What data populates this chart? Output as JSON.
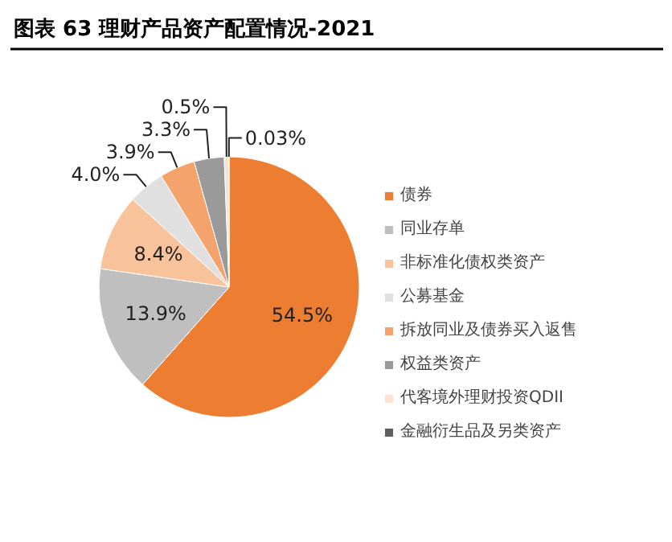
{
  "chart_data": {
    "type": "pie",
    "title": "图表 63 理财产品资产配置情况-2021",
    "categories": [
      "债券",
      "同业存单",
      "非标准化债权类资产",
      "公募基金",
      "拆放同业及债券买入返售",
      "权益类资产",
      "代客境外理财投资QDII",
      "金融衍生品及另类资产"
    ],
    "values": [
      54.5,
      13.9,
      8.4,
      4.0,
      3.9,
      3.3,
      0.5,
      0.03
    ],
    "value_labels": [
      "54.5%",
      "13.9%",
      "8.4%",
      "4.0%",
      "3.9%",
      "3.3%",
      "0.5%",
      "0.03%"
    ],
    "colors": [
      "#ed7d31",
      "#bfbfbf",
      "#f8c29a",
      "#e0e0e0",
      "#f4a36c",
      "#9a9a9a",
      "#fbe2d2",
      "#5f5f5f"
    ],
    "legend": "right"
  }
}
